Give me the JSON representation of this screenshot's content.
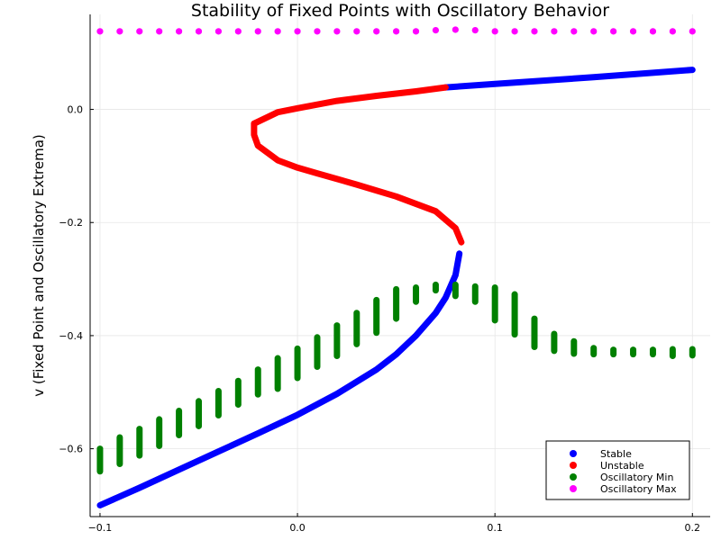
{
  "chart_data": {
    "type": "scatter",
    "title": "Stability of Fixed Points with Oscillatory Behavior",
    "xlabel": "",
    "ylabel": "v (Fixed Point and Oscillatory Extrema)",
    "xlim": [
      -0.105,
      0.209
    ],
    "ylim": [
      -0.72,
      0.168
    ],
    "x_ticks": [
      -0.1,
      0.0,
      0.1,
      0.2
    ],
    "x_tick_labels": [
      "−0.1",
      "0.0",
      "0.1",
      "0.2"
    ],
    "y_ticks": [
      -0.6,
      -0.4,
      -0.2,
      0.0
    ],
    "y_tick_labels": [
      "−0.6",
      "−0.4",
      "−0.2",
      "0.0"
    ],
    "grid": true,
    "legend_position": "bottom-right",
    "series": [
      {
        "name": "Stable",
        "color": "#0000ff",
        "mode": "curve",
        "points": [
          [
            -0.1,
            -0.7
          ],
          [
            -0.08,
            -0.669
          ],
          [
            -0.06,
            -0.637
          ],
          [
            -0.04,
            -0.605
          ],
          [
            -0.02,
            -0.573
          ],
          [
            0.0,
            -0.54
          ],
          [
            0.02,
            -0.503
          ],
          [
            0.04,
            -0.46
          ],
          [
            0.05,
            -0.433
          ],
          [
            0.06,
            -0.4
          ],
          [
            0.07,
            -0.36
          ],
          [
            0.075,
            -0.333
          ],
          [
            0.08,
            -0.293
          ],
          [
            0.082,
            -0.255
          ]
        ],
        "upper_points": [
          [
            0.075,
            0.039
          ],
          [
            0.1,
            0.045
          ],
          [
            0.15,
            0.057
          ],
          [
            0.2,
            0.07
          ]
        ]
      },
      {
        "name": "Unstable",
        "color": "#ff0000",
        "mode": "curve",
        "points": [
          [
            0.083,
            -0.235
          ],
          [
            0.08,
            -0.21
          ],
          [
            0.07,
            -0.18
          ],
          [
            0.05,
            -0.154
          ],
          [
            0.03,
            -0.133
          ],
          [
            0.01,
            -0.113
          ],
          [
            0.0,
            -0.103
          ],
          [
            -0.01,
            -0.09
          ],
          [
            -0.02,
            -0.064
          ],
          [
            -0.022,
            -0.045
          ],
          [
            -0.022,
            -0.025
          ],
          [
            -0.01,
            -0.005
          ],
          [
            0.0,
            0.002
          ],
          [
            0.02,
            0.015
          ],
          [
            0.04,
            0.024
          ],
          [
            0.06,
            0.032
          ],
          [
            0.075,
            0.039
          ]
        ]
      },
      {
        "name": "Oscillatory Min",
        "color": "#008000",
        "mode": "segments",
        "segments": [
          [
            -0.1,
            -0.64,
            -0.6
          ],
          [
            -0.09,
            -0.627,
            -0.58
          ],
          [
            -0.08,
            -0.612,
            -0.565
          ],
          [
            -0.07,
            -0.595,
            -0.548
          ],
          [
            -0.06,
            -0.576,
            -0.533
          ],
          [
            -0.05,
            -0.56,
            -0.516
          ],
          [
            -0.04,
            -0.541,
            -0.498
          ],
          [
            -0.03,
            -0.522,
            -0.48
          ],
          [
            -0.02,
            -0.504,
            -0.46
          ],
          [
            -0.01,
            -0.494,
            -0.44
          ],
          [
            0.0,
            -0.475,
            -0.423
          ],
          [
            0.01,
            -0.455,
            -0.403
          ],
          [
            0.02,
            -0.436,
            -0.382
          ],
          [
            0.03,
            -0.415,
            -0.36
          ],
          [
            0.04,
            -0.395,
            -0.337
          ],
          [
            0.05,
            -0.37,
            -0.318
          ],
          [
            0.06,
            -0.34,
            -0.315
          ],
          [
            0.07,
            -0.32,
            -0.31
          ],
          [
            0.08,
            -0.33,
            -0.31
          ],
          [
            0.09,
            -0.34,
            -0.313
          ],
          [
            0.1,
            -0.373,
            -0.315
          ],
          [
            0.11,
            -0.398,
            -0.327
          ],
          [
            0.12,
            -0.42,
            -0.37
          ],
          [
            0.13,
            -0.427,
            -0.397
          ],
          [
            0.14,
            -0.432,
            -0.41
          ],
          [
            0.15,
            -0.433,
            -0.422
          ],
          [
            0.16,
            -0.433,
            -0.425
          ],
          [
            0.17,
            -0.433,
            -0.425
          ],
          [
            0.18,
            -0.433,
            -0.425
          ],
          [
            0.19,
            -0.436,
            -0.424
          ],
          [
            0.2,
            -0.435,
            -0.424
          ]
        ]
      },
      {
        "name": "Oscillatory Max",
        "color": "#ff00ff",
        "mode": "points",
        "x": [
          -0.1,
          -0.09,
          -0.08,
          -0.07,
          -0.06,
          -0.05,
          -0.04,
          -0.03,
          -0.02,
          -0.01,
          0.0,
          0.01,
          0.02,
          0.03,
          0.04,
          0.05,
          0.06,
          0.07,
          0.08,
          0.09,
          0.1,
          0.11,
          0.12,
          0.13,
          0.14,
          0.15,
          0.16,
          0.17,
          0.18,
          0.19,
          0.2
        ],
        "y": [
          0.138,
          0.138,
          0.138,
          0.138,
          0.138,
          0.138,
          0.138,
          0.138,
          0.138,
          0.138,
          0.138,
          0.138,
          0.138,
          0.138,
          0.138,
          0.138,
          0.138,
          0.14,
          0.141,
          0.14,
          0.138,
          0.138,
          0.138,
          0.138,
          0.138,
          0.138,
          0.138,
          0.138,
          0.138,
          0.138,
          0.138
        ]
      }
    ]
  }
}
